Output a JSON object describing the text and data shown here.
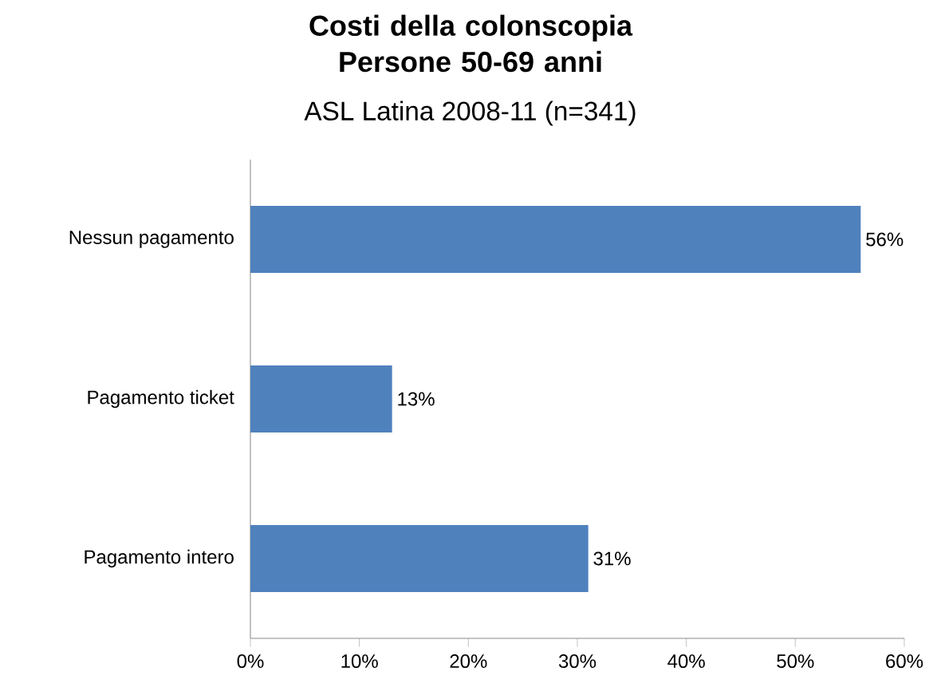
{
  "chart_data": {
    "type": "bar",
    "orientation": "horizontal",
    "title": "Costi della colonscopia Persone 50-69 anni",
    "subtitle": "ASL Latina 2008-11 (n=341)",
    "categories": [
      "Nessun pagamento",
      "Pagamento ticket",
      "Pagamento intero"
    ],
    "values": [
      56,
      13,
      31
    ],
    "value_labels": [
      "56%",
      "13%",
      "31%"
    ],
    "color": "#4f81bd",
    "xlim": [
      0,
      60
    ],
    "xticks": [
      {
        "value": 0,
        "label": "0%"
      },
      {
        "value": 10,
        "label": "10%"
      },
      {
        "value": 20,
        "label": "20%"
      },
      {
        "value": 30,
        "label": "30%"
      },
      {
        "value": 40,
        "label": "40%"
      },
      {
        "value": 50,
        "label": "50%"
      },
      {
        "value": 60,
        "label": "60%"
      }
    ],
    "grid": false
  }
}
